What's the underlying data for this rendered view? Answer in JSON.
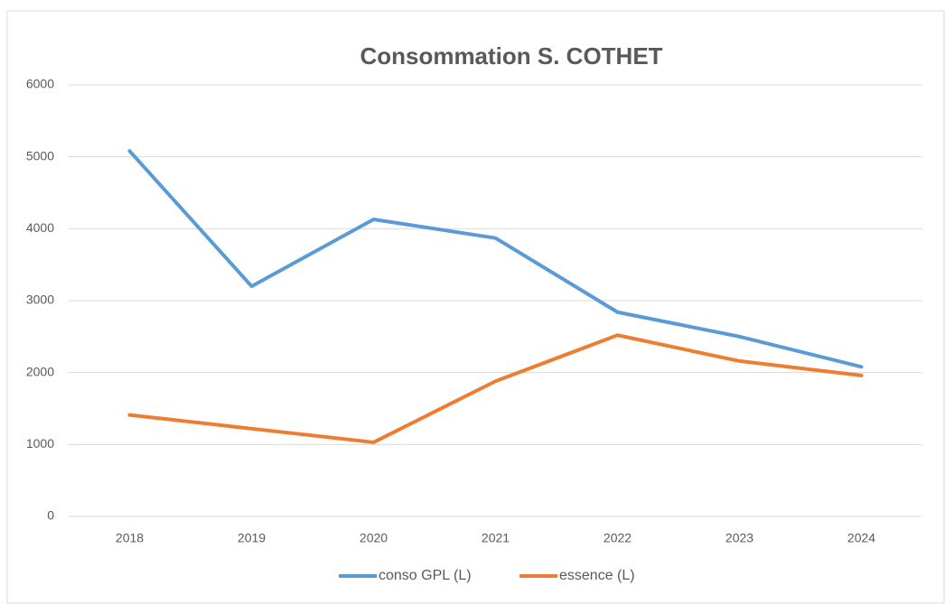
{
  "chart_data": {
    "type": "line",
    "title": "Consommation S. COTHET",
    "categories": [
      "2018",
      "2019",
      "2020",
      "2021",
      "2022",
      "2023",
      "2024"
    ],
    "series": [
      {
        "name": "conso GPL (L)",
        "color": "#5b9bd5",
        "values": [
          5080,
          3200,
          4130,
          3870,
          2840,
          2500,
          2080
        ]
      },
      {
        "name": "essence (L)",
        "color": "#ed7d31",
        "values": [
          1410,
          1220,
          1030,
          1880,
          2520,
          2160,
          1960
        ]
      }
    ],
    "ylim": [
      0,
      6000
    ],
    "yticks": [
      0,
      1000,
      2000,
      3000,
      4000,
      5000,
      6000
    ],
    "grid": true,
    "legend": "bottom"
  }
}
